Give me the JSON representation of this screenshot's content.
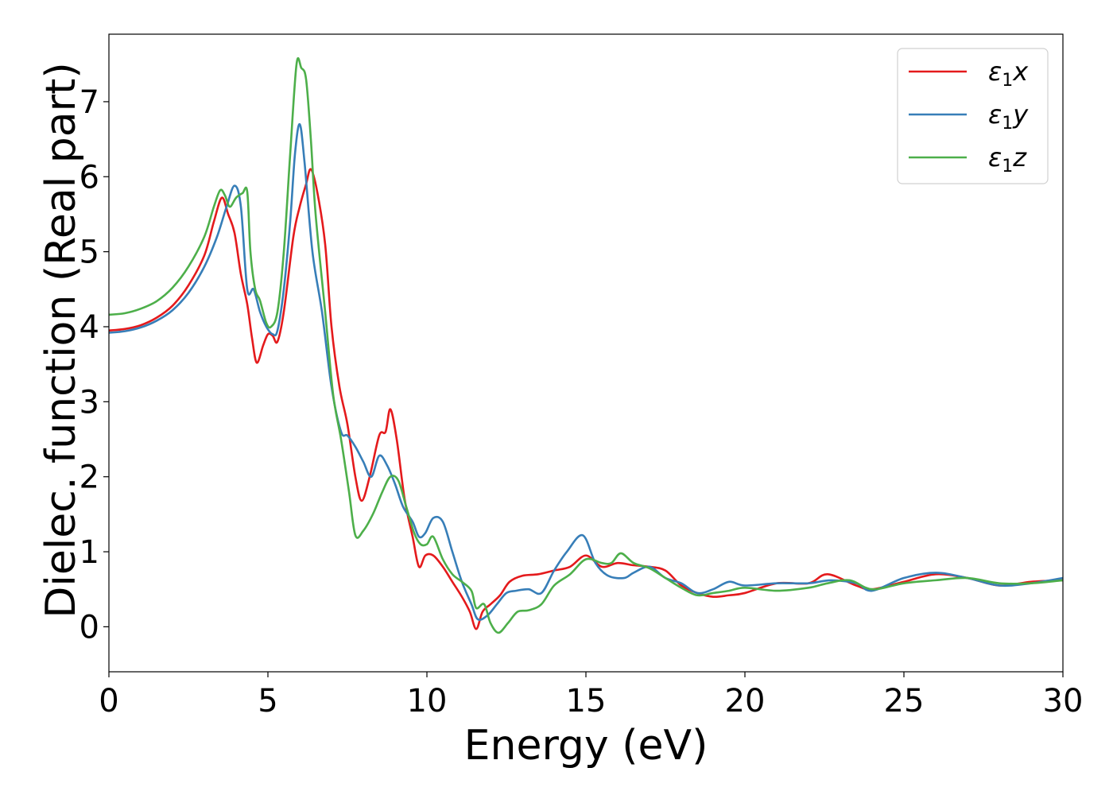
{
  "chart_data": {
    "type": "line",
    "title": "",
    "xlabel": "Energy (eV)",
    "ylabel": "Dielec. function (Real part)",
    "xlim": [
      0,
      30
    ],
    "ylim": [
      -0.6,
      7.9
    ],
    "xticks": [
      0,
      5,
      10,
      15,
      20,
      25,
      30
    ],
    "yticks": [
      0,
      1,
      2,
      3,
      4,
      5,
      6,
      7
    ],
    "grid": false,
    "legend_position": "top-right",
    "series": [
      {
        "name": "ε₁x",
        "legend_main": "ε",
        "legend_sub": "1",
        "legend_var": "x",
        "color": "#e41a1c",
        "points": [
          [
            0,
            3.95
          ],
          [
            0.5,
            3.97
          ],
          [
            1.0,
            4.02
          ],
          [
            1.5,
            4.12
          ],
          [
            2.0,
            4.28
          ],
          [
            2.5,
            4.55
          ],
          [
            3.0,
            4.95
          ],
          [
            3.3,
            5.4
          ],
          [
            3.55,
            5.72
          ],
          [
            3.75,
            5.5
          ],
          [
            3.95,
            5.25
          ],
          [
            4.15,
            4.7
          ],
          [
            4.35,
            4.3
          ],
          [
            4.5,
            3.85
          ],
          [
            4.65,
            3.52
          ],
          [
            4.85,
            3.75
          ],
          [
            5.0,
            3.9
          ],
          [
            5.15,
            3.88
          ],
          [
            5.3,
            3.8
          ],
          [
            5.5,
            4.2
          ],
          [
            5.8,
            5.2
          ],
          [
            6.0,
            5.6
          ],
          [
            6.2,
            5.9
          ],
          [
            6.35,
            6.1
          ],
          [
            6.55,
            5.8
          ],
          [
            6.8,
            5.1
          ],
          [
            7.0,
            4.0
          ],
          [
            7.25,
            3.2
          ],
          [
            7.5,
            2.7
          ],
          [
            7.75,
            2.0
          ],
          [
            7.95,
            1.68
          ],
          [
            8.2,
            2.0
          ],
          [
            8.5,
            2.55
          ],
          [
            8.7,
            2.6
          ],
          [
            8.85,
            2.9
          ],
          [
            9.05,
            2.5
          ],
          [
            9.3,
            1.7
          ],
          [
            9.55,
            1.2
          ],
          [
            9.75,
            0.8
          ],
          [
            9.95,
            0.95
          ],
          [
            10.2,
            0.95
          ],
          [
            10.5,
            0.8
          ],
          [
            10.8,
            0.6
          ],
          [
            11.1,
            0.4
          ],
          [
            11.35,
            0.2
          ],
          [
            11.55,
            -0.03
          ],
          [
            11.75,
            0.2
          ],
          [
            12.0,
            0.3
          ],
          [
            12.3,
            0.42
          ],
          [
            12.6,
            0.6
          ],
          [
            13.0,
            0.68
          ],
          [
            13.5,
            0.7
          ],
          [
            14.0,
            0.75
          ],
          [
            14.5,
            0.8
          ],
          [
            15.0,
            0.95
          ],
          [
            15.5,
            0.8
          ],
          [
            16.0,
            0.85
          ],
          [
            16.5,
            0.82
          ],
          [
            17.0,
            0.8
          ],
          [
            17.5,
            0.75
          ],
          [
            18.0,
            0.55
          ],
          [
            18.5,
            0.45
          ],
          [
            19.0,
            0.4
          ],
          [
            19.5,
            0.42
          ],
          [
            20.0,
            0.45
          ],
          [
            21.0,
            0.58
          ],
          [
            22.0,
            0.58
          ],
          [
            22.6,
            0.7
          ],
          [
            23.5,
            0.55
          ],
          [
            24.0,
            0.5
          ],
          [
            25.0,
            0.6
          ],
          [
            26.0,
            0.7
          ],
          [
            27.0,
            0.65
          ],
          [
            28.0,
            0.55
          ],
          [
            29.0,
            0.6
          ],
          [
            30.0,
            0.62
          ]
        ]
      },
      {
        "name": "ε₁y",
        "legend_main": "ε",
        "legend_sub": "1",
        "legend_var": "y",
        "color": "#377eb8",
        "points": [
          [
            0,
            3.92
          ],
          [
            0.5,
            3.94
          ],
          [
            1.0,
            3.99
          ],
          [
            1.5,
            4.08
          ],
          [
            2.0,
            4.22
          ],
          [
            2.5,
            4.45
          ],
          [
            3.0,
            4.8
          ],
          [
            3.4,
            5.2
          ],
          [
            3.7,
            5.6
          ],
          [
            3.95,
            5.88
          ],
          [
            4.15,
            5.6
          ],
          [
            4.35,
            4.5
          ],
          [
            4.55,
            4.5
          ],
          [
            4.75,
            4.2
          ],
          [
            4.95,
            4.0
          ],
          [
            5.15,
            3.9
          ],
          [
            5.3,
            3.95
          ],
          [
            5.5,
            4.5
          ],
          [
            5.7,
            5.4
          ],
          [
            5.85,
            6.3
          ],
          [
            6.0,
            6.7
          ],
          [
            6.15,
            6.2
          ],
          [
            6.4,
            5.0
          ],
          [
            6.7,
            4.2
          ],
          [
            7.0,
            3.2
          ],
          [
            7.3,
            2.6
          ],
          [
            7.5,
            2.55
          ],
          [
            7.75,
            2.4
          ],
          [
            8.0,
            2.2
          ],
          [
            8.25,
            2.0
          ],
          [
            8.5,
            2.28
          ],
          [
            8.75,
            2.15
          ],
          [
            9.0,
            1.9
          ],
          [
            9.25,
            1.6
          ],
          [
            9.55,
            1.4
          ],
          [
            9.75,
            1.2
          ],
          [
            9.95,
            1.25
          ],
          [
            10.2,
            1.45
          ],
          [
            10.5,
            1.4
          ],
          [
            10.8,
            1.0
          ],
          [
            11.1,
            0.6
          ],
          [
            11.4,
            0.3
          ],
          [
            11.6,
            0.1
          ],
          [
            11.9,
            0.15
          ],
          [
            12.2,
            0.3
          ],
          [
            12.5,
            0.45
          ],
          [
            12.8,
            0.48
          ],
          [
            13.2,
            0.5
          ],
          [
            13.6,
            0.45
          ],
          [
            14.0,
            0.75
          ],
          [
            14.4,
            1.0
          ],
          [
            14.9,
            1.22
          ],
          [
            15.3,
            0.85
          ],
          [
            15.7,
            0.68
          ],
          [
            16.2,
            0.65
          ],
          [
            16.5,
            0.72
          ],
          [
            17.0,
            0.8
          ],
          [
            17.5,
            0.65
          ],
          [
            18.0,
            0.58
          ],
          [
            18.5,
            0.45
          ],
          [
            19.0,
            0.5
          ],
          [
            19.5,
            0.6
          ],
          [
            20.0,
            0.55
          ],
          [
            21.0,
            0.58
          ],
          [
            22.0,
            0.58
          ],
          [
            22.7,
            0.62
          ],
          [
            23.5,
            0.58
          ],
          [
            24.0,
            0.48
          ],
          [
            25.0,
            0.65
          ],
          [
            26.0,
            0.72
          ],
          [
            27.0,
            0.65
          ],
          [
            28.0,
            0.55
          ],
          [
            29.0,
            0.58
          ],
          [
            30.0,
            0.65
          ]
        ]
      },
      {
        "name": "ε₁z",
        "legend_main": "ε",
        "legend_sub": "1",
        "legend_var": "z",
        "color": "#4daf4a",
        "points": [
          [
            0,
            4.16
          ],
          [
            0.5,
            4.18
          ],
          [
            1.0,
            4.24
          ],
          [
            1.5,
            4.34
          ],
          [
            2.0,
            4.52
          ],
          [
            2.5,
            4.8
          ],
          [
            3.0,
            5.2
          ],
          [
            3.3,
            5.6
          ],
          [
            3.5,
            5.82
          ],
          [
            3.65,
            5.75
          ],
          [
            3.8,
            5.6
          ],
          [
            4.0,
            5.72
          ],
          [
            4.2,
            5.78
          ],
          [
            4.35,
            5.8
          ],
          [
            4.45,
            5.0
          ],
          [
            4.6,
            4.5
          ],
          [
            4.75,
            4.35
          ],
          [
            4.95,
            4.05
          ],
          [
            5.1,
            4.0
          ],
          [
            5.3,
            4.2
          ],
          [
            5.5,
            5.0
          ],
          [
            5.7,
            6.3
          ],
          [
            5.9,
            7.5
          ],
          [
            6.05,
            7.45
          ],
          [
            6.2,
            7.3
          ],
          [
            6.35,
            6.5
          ],
          [
            6.5,
            5.5
          ],
          [
            6.8,
            4.2
          ],
          [
            7.05,
            3.1
          ],
          [
            7.3,
            2.5
          ],
          [
            7.55,
            1.8
          ],
          [
            7.75,
            1.22
          ],
          [
            8.0,
            1.28
          ],
          [
            8.3,
            1.5
          ],
          [
            8.6,
            1.8
          ],
          [
            8.85,
            2.0
          ],
          [
            9.1,
            1.95
          ],
          [
            9.35,
            1.6
          ],
          [
            9.6,
            1.25
          ],
          [
            9.8,
            1.1
          ],
          [
            10.0,
            1.1
          ],
          [
            10.2,
            1.2
          ],
          [
            10.5,
            0.9
          ],
          [
            10.8,
            0.7
          ],
          [
            11.1,
            0.6
          ],
          [
            11.4,
            0.48
          ],
          [
            11.55,
            0.25
          ],
          [
            11.8,
            0.3
          ],
          [
            12.0,
            0.05
          ],
          [
            12.25,
            -0.08
          ],
          [
            12.55,
            0.05
          ],
          [
            12.85,
            0.2
          ],
          [
            13.2,
            0.22
          ],
          [
            13.6,
            0.3
          ],
          [
            14.0,
            0.55
          ],
          [
            14.5,
            0.7
          ],
          [
            15.0,
            0.9
          ],
          [
            15.5,
            0.85
          ],
          [
            15.8,
            0.85
          ],
          [
            16.1,
            0.98
          ],
          [
            16.5,
            0.85
          ],
          [
            17.0,
            0.78
          ],
          [
            17.5,
            0.65
          ],
          [
            18.0,
            0.52
          ],
          [
            18.5,
            0.42
          ],
          [
            19.0,
            0.45
          ],
          [
            19.5,
            0.48
          ],
          [
            20.0,
            0.52
          ],
          [
            21.0,
            0.48
          ],
          [
            22.0,
            0.52
          ],
          [
            22.6,
            0.58
          ],
          [
            23.3,
            0.62
          ],
          [
            24.0,
            0.5
          ],
          [
            25.0,
            0.58
          ],
          [
            26.0,
            0.62
          ],
          [
            27.0,
            0.65
          ],
          [
            28.0,
            0.58
          ],
          [
            29.0,
            0.58
          ],
          [
            30.0,
            0.62
          ]
        ]
      }
    ]
  }
}
